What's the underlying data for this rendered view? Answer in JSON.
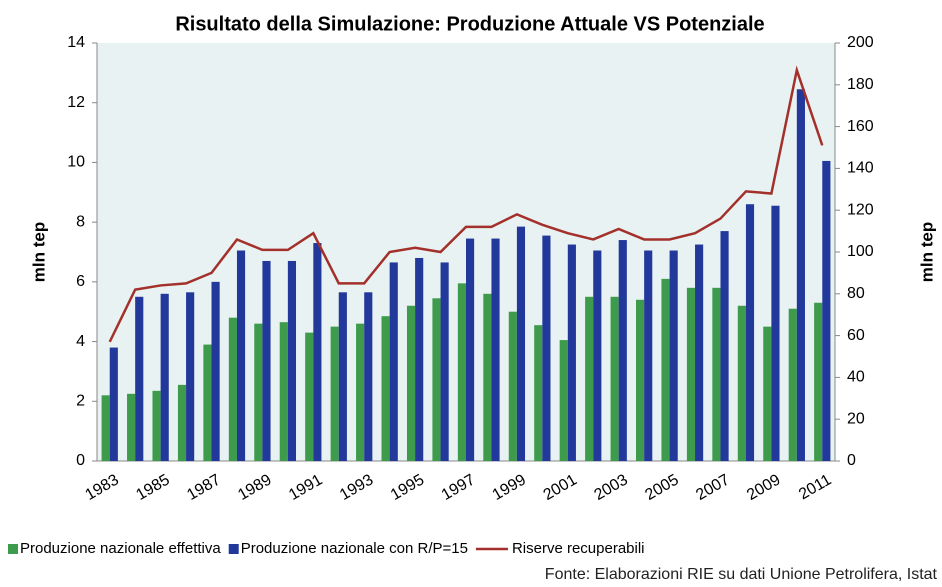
{
  "chart_data": {
    "type": "bar",
    "title": "Risultato della Simulazione: Produzione Attuale VS Potenziale",
    "y_label": "mln tep",
    "y2_label": "mln tep",
    "source": "Fonte: Elaborazioni RIE su dati Unione Petrolifera, Istat",
    "categories": [
      "1983",
      null,
      "1985",
      null,
      "1987",
      null,
      "1989",
      null,
      "1991",
      null,
      "1993",
      null,
      "1995",
      null,
      "1997",
      null,
      "1999",
      null,
      "2001",
      null,
      "2003",
      null,
      "2005",
      null,
      "2007",
      null,
      "2009",
      null,
      "2011"
    ],
    "series": [
      {
        "name": "Produzione nazionale effettiva",
        "type": "bar",
        "color": "#3d9b4b",
        "values": [
          2.2,
          2.25,
          2.35,
          2.55,
          3.9,
          4.8,
          4.6,
          4.65,
          4.3,
          4.5,
          4.6,
          4.85,
          5.2,
          5.45,
          5.95,
          5.6,
          5.0,
          4.55,
          4.05,
          5.5,
          5.5,
          5.4,
          6.1,
          5.8,
          5.8,
          5.2,
          4.5,
          5.1,
          5.3
        ]
      },
      {
        "name": "Produzione nazionale con R/P=15",
        "type": "bar",
        "color": "#23389b",
        "values": [
          3.8,
          5.5,
          5.6,
          5.65,
          6.0,
          7.05,
          6.7,
          6.7,
          7.3,
          5.65,
          5.65,
          6.65,
          6.8,
          6.65,
          7.45,
          7.45,
          7.85,
          7.55,
          7.25,
          7.05,
          7.4,
          7.05,
          7.05,
          7.25,
          7.7,
          8.6,
          8.55,
          12.45,
          10.05
        ]
      },
      {
        "name": "Riserve recuperabili",
        "type": "line",
        "axis": "y2",
        "color": "#a3302a",
        "values": [
          57,
          82,
          84,
          85,
          90,
          106,
          101,
          101,
          109,
          85,
          85,
          100,
          102,
          100,
          112,
          112,
          118,
          113,
          109,
          106,
          111,
          106,
          106,
          109,
          116,
          129,
          128,
          187,
          151
        ]
      }
    ],
    "ylim": [
      0,
      14
    ],
    "yticks": [
      0,
      2,
      4,
      6,
      8,
      10,
      12,
      14
    ],
    "y2lim": [
      0,
      200
    ],
    "y2ticks": [
      0,
      20,
      40,
      60,
      80,
      100,
      120,
      140,
      160,
      180,
      200
    ]
  }
}
